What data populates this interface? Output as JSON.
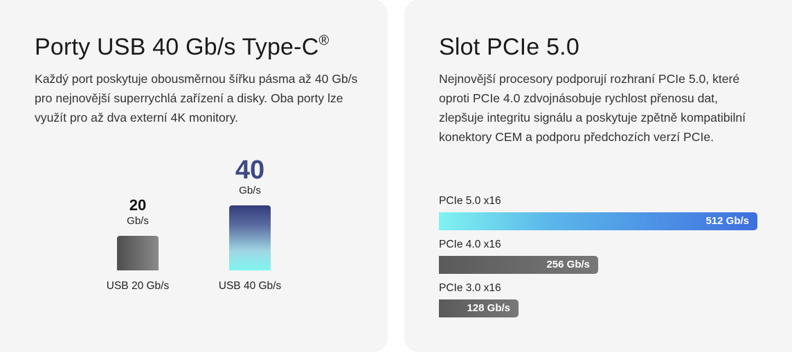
{
  "usb": {
    "title": "Porty USB 40 Gb/s Type-C",
    "title_mark": "®",
    "description": "Každý port poskytuje obousměrnou šířku pásma až 40 Gb/s pro nejnovější superrychlá zařízení a disky. Oba porty lze využít pro až dva externí 4K monitory.",
    "bars": [
      {
        "value": "20",
        "unit": "Gb/s",
        "label": "USB 20 Gb/s",
        "gbps": 20
      },
      {
        "value": "40",
        "unit": "Gb/s",
        "label": "USB 40 Gb/s",
        "gbps": 40
      }
    ]
  },
  "pcie": {
    "title": "Slot PCIe 5.0",
    "description": "Nejnovější procesory podporují rozhraní PCIe 5.0, které oproti PCIe 4.0 zdvojnásobuje rychlost přenosu dat, zlepšuje integritu signálu a poskytuje zpětně kompatibilní konektory CEM a podporu předchozích verzí PCIe.",
    "bars": [
      {
        "label": "PCIe 5.0 x16",
        "value_text": "512 Gb/s",
        "gbps": 512
      },
      {
        "label": "PCIe 4.0 x16",
        "value_text": "256 Gb/s",
        "gbps": 256
      },
      {
        "label": "PCIe 3.0 x16",
        "value_text": "128 Gb/s",
        "gbps": 128
      }
    ]
  },
  "colors": {
    "card_bg": "#f5f5f5",
    "gray_bar_start": "#4a4a4a",
    "gray_bar_end": "#8a8a8a",
    "usb40_top": "#3d4a85",
    "usb40_bottom": "#7ff5f0",
    "pcie5_start": "#7ff3f0",
    "pcie5_end": "#3f6fe0",
    "accent_value": "#3d4a85"
  }
}
